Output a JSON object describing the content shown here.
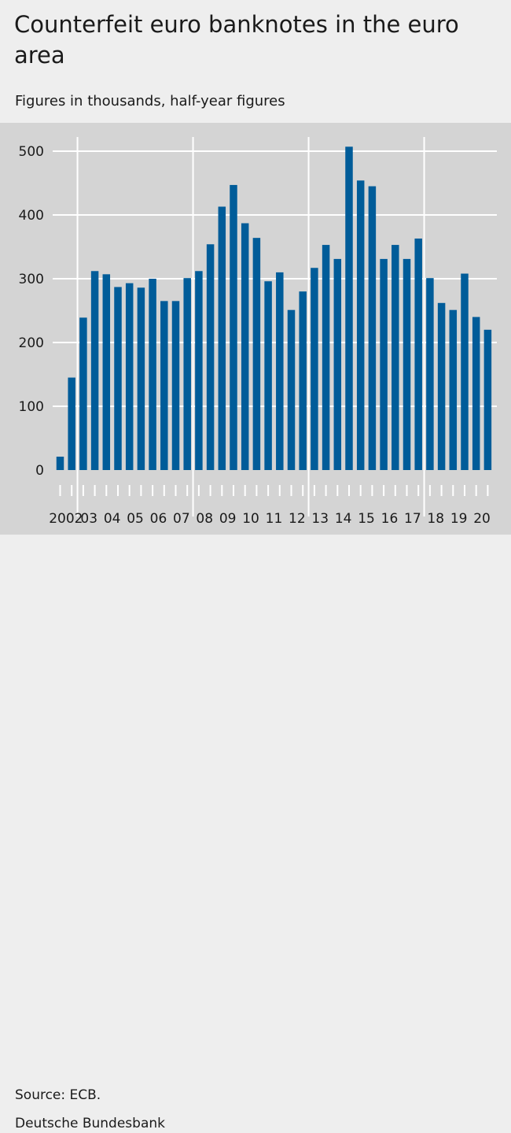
{
  "header": {
    "title": "Counterfeit euro banknotes in the euro area",
    "subtitle": "Figures in thousands, half-year figures"
  },
  "footer": {
    "source": "Source: ECB.",
    "organization": "Deutsche Bundesbank"
  },
  "colors": {
    "bar": "#005c99",
    "plot_background": "#d4d4d4",
    "gridline": "#ffffff",
    "page_background": "#eeeeee"
  },
  "chart_data": {
    "type": "bar",
    "title": "Counterfeit euro banknotes in the euro area",
    "subtitle": "Figures in thousands, half-year figures",
    "xlabel": "",
    "ylabel": "",
    "ylim": [
      0,
      500
    ],
    "yticks": [
      0,
      100,
      200,
      300,
      400,
      500
    ],
    "grid": true,
    "legend": "none",
    "x_group_labels": [
      "2002",
      "03",
      "04",
      "05",
      "06",
      "07",
      "08",
      "09",
      "10",
      "11",
      "12",
      "13",
      "14",
      "15",
      "16",
      "17",
      "18",
      "19",
      "20"
    ],
    "categories": [
      "2002 H1",
      "2002 H2",
      "2003 H1",
      "2003 H2",
      "2004 H1",
      "2004 H2",
      "2005 H1",
      "2005 H2",
      "2006 H1",
      "2006 H2",
      "2007 H1",
      "2007 H2",
      "2008 H1",
      "2008 H2",
      "2009 H1",
      "2009 H2",
      "2010 H1",
      "2010 H2",
      "2011 H1",
      "2011 H2",
      "2012 H1",
      "2012 H2",
      "2013 H1",
      "2013 H2",
      "2014 H1",
      "2014 H2",
      "2015 H1",
      "2015 H2",
      "2016 H1",
      "2016 H2",
      "2017 H1",
      "2017 H2",
      "2018 H1",
      "2018 H2",
      "2019 H1",
      "2019 H2",
      "2020 H1",
      "2020 H2"
    ],
    "values": [
      21,
      145,
      239,
      312,
      307,
      287,
      293,
      286,
      300,
      265,
      265,
      301,
      312,
      354,
      413,
      447,
      387,
      364,
      296,
      310,
      251,
      280,
      317,
      353,
      331,
      507,
      454,
      445,
      331,
      353,
      331,
      363,
      301,
      262,
      251,
      308,
      240,
      220
    ],
    "major_gridline_years": [
      "2003",
      "2008",
      "2013",
      "2018"
    ]
  }
}
